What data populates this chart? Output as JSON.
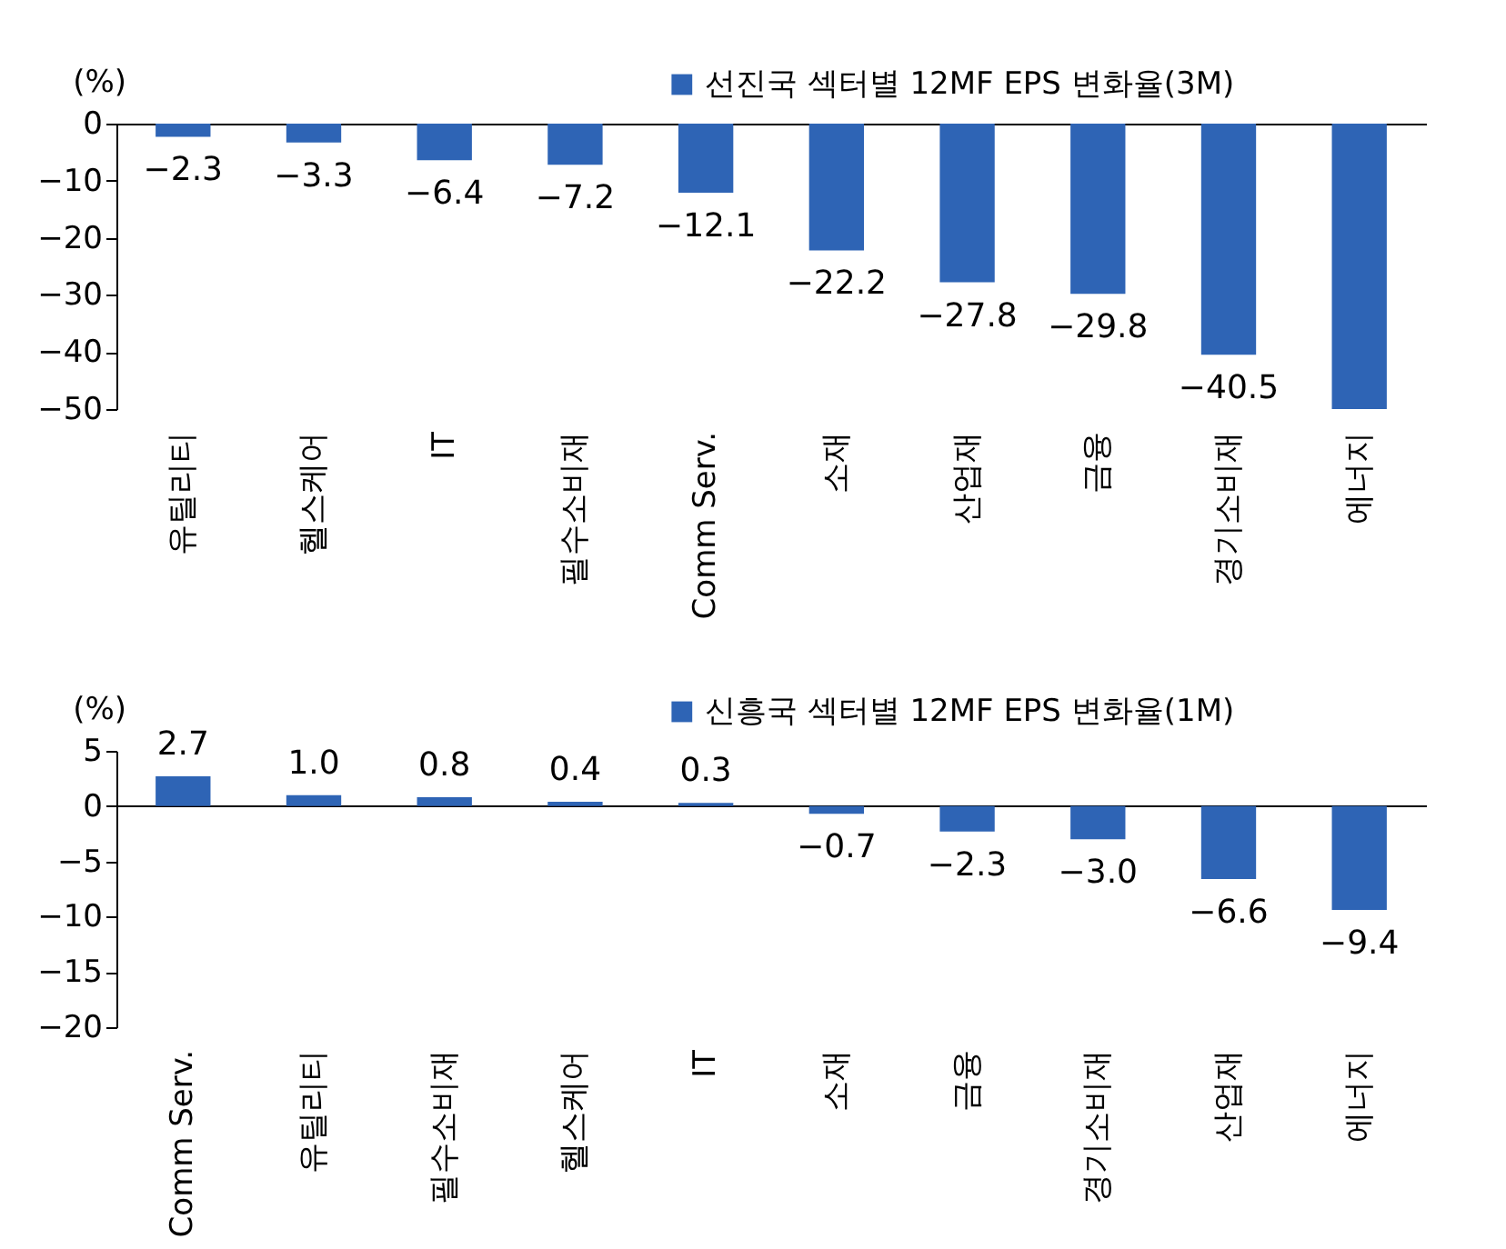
{
  "chart_data": [
    {
      "type": "bar",
      "ylabel": "(%)",
      "categories": [
        "유틸리티",
        "헬스케어",
        "IT",
        "필수소비재",
        "Comm Serv.",
        "소재",
        "산업재",
        "금융",
        "경기소비재",
        "에너지"
      ],
      "series": [
        {
          "name": "선진국 섹터별 12MF EPS 변화율(3M)",
          "color": "#2e64b5",
          "values": [
            -2.3,
            -3.3,
            -6.4,
            -7.2,
            -12.1,
            -22.2,
            -27.8,
            -29.8,
            -40.5,
            -50.0
          ]
        }
      ],
      "value_labels": [
        "−2.3",
        "−3.3",
        "−6.4",
        "−7.2",
        "−12.1",
        "−22.2",
        "−27.8",
        "−29.8",
        "−40.5",
        null
      ],
      "ylim": [
        -50,
        0
      ],
      "yticks": [
        {
          "value": 0,
          "label": "0"
        },
        {
          "value": -10,
          "label": "−10"
        },
        {
          "value": -20,
          "label": "−20"
        },
        {
          "value": -30,
          "label": "−30"
        },
        {
          "value": -40,
          "label": "−40"
        },
        {
          "value": -50,
          "label": "−50"
        }
      ],
      "legend": "top right"
    },
    {
      "type": "bar",
      "ylabel": "(%)",
      "categories": [
        "Comm Serv.",
        "유틸리티",
        "필수소비재",
        "헬스케어",
        "IT",
        "소재",
        "금융",
        "경기소비재",
        "산업재",
        "에너지"
      ],
      "series": [
        {
          "name": "신흥국 섹터별 12MF EPS 변화율(1M)",
          "color": "#2e64b5",
          "values": [
            2.7,
            1.0,
            0.8,
            0.4,
            0.3,
            -0.7,
            -2.3,
            -3.0,
            -6.6,
            -9.4
          ]
        }
      ],
      "value_labels": [
        "2.7",
        "1.0",
        "0.8",
        "0.4",
        "0.3",
        "−0.7",
        "−2.3",
        "−3.0",
        "−6.6",
        "−9.4"
      ],
      "ylim": [
        -20,
        5
      ],
      "yticks": [
        5,
        {
          "value": 0,
          "label": "0"
        },
        {
          "value": -5,
          "label": "−5"
        },
        {
          "value": -10,
          "label": "−10"
        },
        {
          "value": -15,
          "label": "−15"
        },
        {
          "value": -20,
          "label": "−20"
        }
      ],
      "legend": "top right"
    }
  ]
}
